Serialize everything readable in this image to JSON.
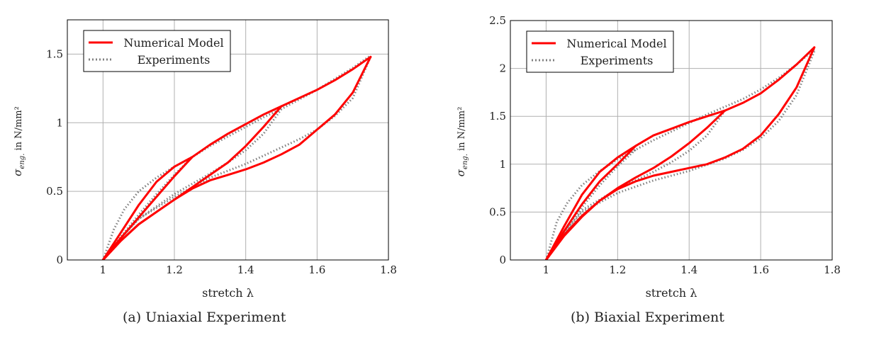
{
  "chart_data": [
    {
      "type": "line",
      "caption": "(a) Uniaxial Experiment",
      "xlabel": "stretch λ",
      "ylabel": {
        "symbol": "σ",
        "sub": "eng.",
        "rest": "in N/mm²"
      },
      "xlim": [
        0.9,
        1.8
      ],
      "ylim": [
        0,
        1.75
      ],
      "xticks": [
        1,
        1.2,
        1.4,
        1.6,
        1.8
      ],
      "xtick_labels": [
        "1",
        "1.2",
        "1.4",
        "1.6",
        "1.8"
      ],
      "yticks": [
        0,
        0.5,
        1,
        1.5
      ],
      "ytick_labels": [
        "0",
        "0.5",
        "1",
        "1.5"
      ],
      "grid": true,
      "legend_position": "top-left",
      "series": [
        {
          "name": "Numerical Model",
          "color": "#ff0000",
          "style": "solid",
          "segments": [
            [
              [
                1,
                0
              ],
              [
                1.05,
                0.2
              ],
              [
                1.1,
                0.4
              ],
              [
                1.15,
                0.57
              ],
              [
                1.2,
                0.68
              ],
              [
                1.25,
                0.75
              ],
              [
                1.3,
                0.84
              ],
              [
                1.35,
                0.92
              ],
              [
                1.4,
                0.99
              ],
              [
                1.45,
                1.06
              ],
              [
                1.5,
                1.12
              ],
              [
                1.55,
                1.18
              ],
              [
                1.6,
                1.24
              ],
              [
                1.65,
                1.31
              ],
              [
                1.7,
                1.39
              ],
              [
                1.75,
                1.48
              ]
            ],
            [
              [
                1.25,
                0.75
              ],
              [
                1.2,
                0.61
              ],
              [
                1.15,
                0.46
              ],
              [
                1.1,
                0.31
              ],
              [
                1.05,
                0.16
              ],
              [
                1,
                0
              ]
            ],
            [
              [
                1.5,
                1.12
              ],
              [
                1.45,
                0.97
              ],
              [
                1.4,
                0.83
              ],
              [
                1.35,
                0.71
              ],
              [
                1.3,
                0.62
              ],
              [
                1.25,
                0.53
              ],
              [
                1.2,
                0.44
              ],
              [
                1.15,
                0.35
              ],
              [
                1.1,
                0.26
              ],
              [
                1.05,
                0.14
              ],
              [
                1,
                0
              ]
            ],
            [
              [
                1.75,
                1.48
              ],
              [
                1.7,
                1.22
              ],
              [
                1.65,
                1.06
              ],
              [
                1.6,
                0.95
              ],
              [
                1.55,
                0.84
              ],
              [
                1.5,
                0.77
              ],
              [
                1.45,
                0.71
              ],
              [
                1.4,
                0.66
              ],
              [
                1.35,
                0.62
              ],
              [
                1.3,
                0.58
              ],
              [
                1.25,
                0.52
              ],
              [
                1.2,
                0.44
              ],
              [
                1.15,
                0.35
              ],
              [
                1.1,
                0.26
              ],
              [
                1.05,
                0.14
              ],
              [
                1,
                0
              ]
            ]
          ]
        },
        {
          "name": "Experiments",
          "color": "#808080",
          "style": "dotted",
          "segments": [
            [
              [
                1,
                0
              ],
              [
                1.03,
                0.22
              ],
              [
                1.06,
                0.37
              ],
              [
                1.1,
                0.5
              ],
              [
                1.15,
                0.6
              ],
              [
                1.2,
                0.68
              ],
              [
                1.25,
                0.75
              ],
              [
                1.3,
                0.83
              ],
              [
                1.35,
                0.9
              ],
              [
                1.4,
                0.97
              ],
              [
                1.45,
                1.04
              ],
              [
                1.5,
                1.1
              ],
              [
                1.55,
                1.17
              ],
              [
                1.6,
                1.24
              ],
              [
                1.65,
                1.32
              ],
              [
                1.7,
                1.4
              ],
              [
                1.75,
                1.49
              ]
            ],
            [
              [
                1.25,
                0.75
              ],
              [
                1.2,
                0.62
              ],
              [
                1.15,
                0.48
              ],
              [
                1.1,
                0.33
              ],
              [
                1.05,
                0.17
              ],
              [
                1,
                0
              ]
            ],
            [
              [
                1.5,
                1.1
              ],
              [
                1.45,
                0.92
              ],
              [
                1.4,
                0.8
              ],
              [
                1.35,
                0.71
              ],
              [
                1.3,
                0.63
              ],
              [
                1.2,
                0.48
              ],
              [
                1.1,
                0.3
              ],
              [
                1.05,
                0.16
              ],
              [
                1,
                0
              ]
            ],
            [
              [
                1.75,
                1.48
              ],
              [
                1.7,
                1.18
              ],
              [
                1.65,
                1.05
              ],
              [
                1.6,
                0.95
              ],
              [
                1.55,
                0.88
              ],
              [
                1.5,
                0.82
              ],
              [
                1.4,
                0.7
              ],
              [
                1.3,
                0.6
              ],
              [
                1.2,
                0.46
              ],
              [
                1.1,
                0.3
              ],
              [
                1.05,
                0.16
              ],
              [
                1,
                0
              ]
            ]
          ]
        }
      ]
    },
    {
      "type": "line",
      "caption": "(b) Biaxial Experiment",
      "xlabel": "stretch λ",
      "ylabel": {
        "symbol": "σ",
        "sub": "eng.",
        "rest": "in N/mm²"
      },
      "xlim": [
        0.9,
        1.8
      ],
      "ylim": [
        0,
        2.5
      ],
      "xticks": [
        1,
        1.2,
        1.4,
        1.6,
        1.8
      ],
      "xtick_labels": [
        "1",
        "1.2",
        "1.4",
        "1.6",
        "1.8"
      ],
      "yticks": [
        0,
        0.5,
        1,
        1.5,
        2,
        2.5
      ],
      "ytick_labels": [
        "0",
        "0.5",
        "1",
        "1.5",
        "2",
        "2.5"
      ],
      "grid": true,
      "legend_position": "top-left",
      "series": [
        {
          "name": "Numerical Model",
          "color": "#ff0000",
          "style": "solid",
          "segments": [
            [
              [
                1,
                0
              ],
              [
                1.05,
                0.35
              ],
              [
                1.1,
                0.68
              ],
              [
                1.15,
                0.92
              ],
              [
                1.2,
                1.07
              ],
              [
                1.25,
                1.19
              ],
              [
                1.3,
                1.3
              ],
              [
                1.35,
                1.37
              ],
              [
                1.4,
                1.44
              ],
              [
                1.45,
                1.5
              ],
              [
                1.5,
                1.56
              ],
              [
                1.55,
                1.64
              ],
              [
                1.6,
                1.74
              ],
              [
                1.65,
                1.88
              ],
              [
                1.7,
                2.04
              ],
              [
                1.75,
                2.22
              ]
            ],
            [
              [
                1.25,
                1.19
              ],
              [
                1.2,
                1.0
              ],
              [
                1.15,
                0.82
              ],
              [
                1.1,
                0.58
              ],
              [
                1.05,
                0.3
              ],
              [
                1,
                0
              ]
            ],
            [
              [
                1.5,
                1.56
              ],
              [
                1.45,
                1.38
              ],
              [
                1.4,
                1.22
              ],
              [
                1.35,
                1.08
              ],
              [
                1.3,
                0.96
              ],
              [
                1.25,
                0.86
              ],
              [
                1.2,
                0.75
              ],
              [
                1.15,
                0.62
              ],
              [
                1.1,
                0.45
              ],
              [
                1.05,
                0.25
              ],
              [
                1,
                0
              ]
            ],
            [
              [
                1.75,
                2.22
              ],
              [
                1.7,
                1.8
              ],
              [
                1.65,
                1.52
              ],
              [
                1.6,
                1.3
              ],
              [
                1.55,
                1.16
              ],
              [
                1.5,
                1.07
              ],
              [
                1.45,
                1.0
              ],
              [
                1.4,
                0.96
              ],
              [
                1.35,
                0.92
              ],
              [
                1.3,
                0.88
              ],
              [
                1.25,
                0.82
              ],
              [
                1.2,
                0.74
              ],
              [
                1.15,
                0.62
              ],
              [
                1.1,
                0.46
              ],
              [
                1.05,
                0.26
              ],
              [
                1,
                0
              ]
            ]
          ]
        },
        {
          "name": "Experiments",
          "color": "#808080",
          "style": "dotted",
          "segments": [
            [
              [
                1,
                0
              ],
              [
                1.03,
                0.4
              ],
              [
                1.06,
                0.6
              ],
              [
                1.1,
                0.78
              ],
              [
                1.15,
                0.93
              ],
              [
                1.2,
                1.05
              ],
              [
                1.25,
                1.15
              ],
              [
                1.3,
                1.25
              ],
              [
                1.35,
                1.34
              ],
              [
                1.4,
                1.43
              ],
              [
                1.45,
                1.52
              ],
              [
                1.5,
                1.6
              ],
              [
                1.55,
                1.68
              ],
              [
                1.6,
                1.78
              ],
              [
                1.65,
                1.9
              ],
              [
                1.7,
                2.04
              ],
              [
                1.75,
                2.2
              ]
            ],
            [
              [
                1.25,
                1.15
              ],
              [
                1.2,
                0.98
              ],
              [
                1.15,
                0.78
              ],
              [
                1.1,
                0.55
              ],
              [
                1.05,
                0.29
              ],
              [
                1,
                0
              ]
            ],
            [
              [
                1.5,
                1.56
              ],
              [
                1.45,
                1.3
              ],
              [
                1.4,
                1.14
              ],
              [
                1.35,
                1.02
              ],
              [
                1.3,
                0.92
              ],
              [
                1.2,
                0.74
              ],
              [
                1.1,
                0.52
              ],
              [
                1.05,
                0.28
              ],
              [
                1,
                0
              ]
            ],
            [
              [
                1.75,
                2.18
              ],
              [
                1.7,
                1.72
              ],
              [
                1.65,
                1.45
              ],
              [
                1.6,
                1.27
              ],
              [
                1.55,
                1.15
              ],
              [
                1.5,
                1.06
              ],
              [
                1.4,
                0.93
              ],
              [
                1.3,
                0.83
              ],
              [
                1.2,
                0.7
              ],
              [
                1.1,
                0.5
              ],
              [
                1.05,
                0.28
              ],
              [
                1,
                0
              ]
            ]
          ]
        }
      ]
    }
  ]
}
